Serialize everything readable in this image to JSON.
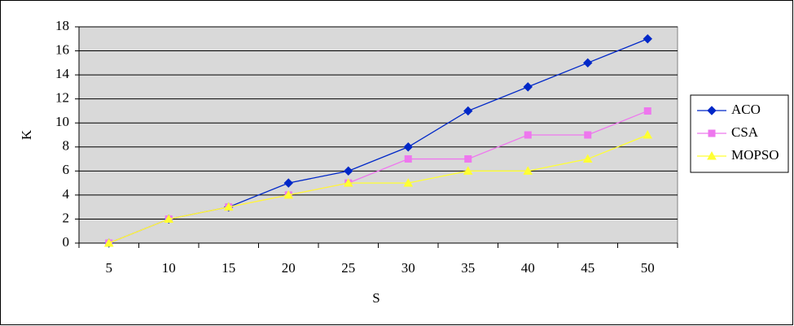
{
  "chart_data": {
    "type": "line",
    "x_label": "S",
    "y_label": "K",
    "categories": [
      "5",
      "10",
      "15",
      "20",
      "25",
      "30",
      "35",
      "40",
      "45",
      "50"
    ],
    "series": [
      {
        "name": "ACO",
        "color": "#0028c8",
        "marker": "diamond",
        "values": [
          0,
          2,
          3,
          5,
          6,
          8,
          11,
          13,
          15,
          17
        ]
      },
      {
        "name": "CSA",
        "color": "#ee77ee",
        "marker": "square",
        "values": [
          0,
          2,
          3,
          4,
          5,
          7,
          7,
          9,
          9,
          11
        ]
      },
      {
        "name": "MOPSO",
        "color": "#ffff33",
        "marker": "triangle",
        "values": [
          0,
          2,
          3,
          4,
          5,
          5,
          6,
          6,
          7,
          9
        ]
      }
    ],
    "ylim": [
      0,
      18
    ],
    "yticks": [
      0,
      2,
      4,
      6,
      8,
      10,
      12,
      14,
      16,
      18
    ],
    "grid": true,
    "legend": "right"
  }
}
